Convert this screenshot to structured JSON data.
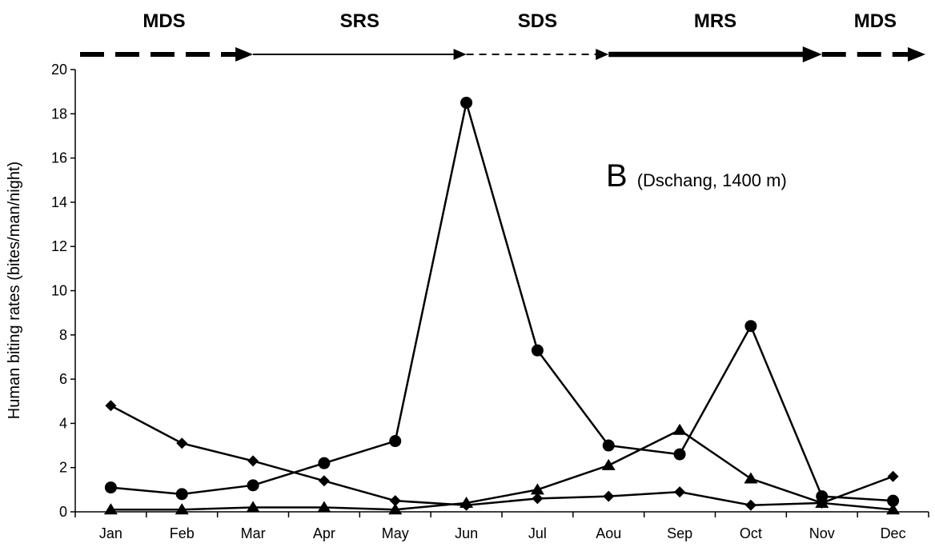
{
  "chart_data": {
    "type": "line",
    "categories": [
      "Jan",
      "Feb",
      "Mar",
      "Apr",
      "May",
      "Jun",
      "Jul",
      "Aou",
      "Sep",
      "Oct",
      "Nov",
      "Dec"
    ],
    "series": [
      {
        "marker": "circle",
        "values": [
          1.1,
          0.8,
          1.2,
          2.2,
          3.2,
          18.5,
          7.3,
          3.0,
          2.6,
          8.4,
          0.7,
          0.5
        ]
      },
      {
        "marker": "diamond",
        "values": [
          4.8,
          3.1,
          2.3,
          1.4,
          0.5,
          0.3,
          0.6,
          0.7,
          0.9,
          0.3,
          0.4,
          1.6
        ]
      },
      {
        "marker": "triangle",
        "values": [
          0.1,
          0.1,
          0.2,
          0.2,
          0.1,
          0.4,
          1.0,
          2.1,
          3.7,
          1.5,
          0.4,
          0.1
        ]
      }
    ],
    "ylabel": "Human biting rates (bites/man/night)",
    "xlabel": "",
    "ylim": [
      0,
      20
    ],
    "yticks": [
      0,
      2,
      4,
      6,
      8,
      10,
      12,
      14,
      16,
      18,
      20
    ],
    "grid": false,
    "annotation": {
      "letter": "B",
      "text": "(Dschang, 1400 m)"
    },
    "seasons": [
      {
        "label": "MDS",
        "style": "thick-dashed",
        "from_month": 0,
        "to_month": 2.5
      },
      {
        "label": "SRS",
        "style": "thin-solid",
        "from_month": 2.5,
        "to_month": 5.5
      },
      {
        "label": "SDS",
        "style": "thin-dashed",
        "from_month": 5.5,
        "to_month": 7.5
      },
      {
        "label": "MRS",
        "style": "thick-solid",
        "from_month": 7.5,
        "to_month": 10.5
      },
      {
        "label": "MDS",
        "style": "thick-dashed",
        "from_month": 10.5,
        "to_month": 12
      }
    ]
  }
}
